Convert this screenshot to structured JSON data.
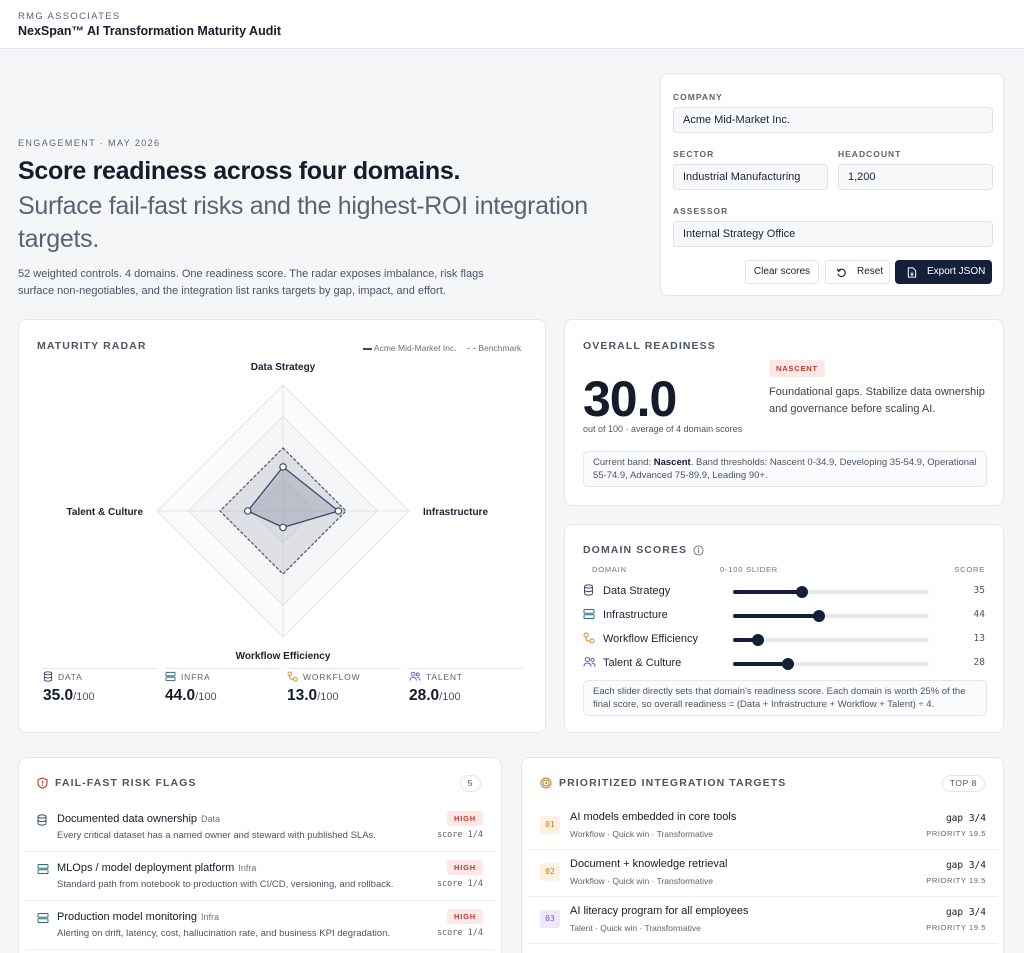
{
  "header": {
    "brand": "RMG ASSOCIATES",
    "title": "NexSpan™ AI Transformation Maturity Audit"
  },
  "hero": {
    "eyebrow": "ENGAGEMENT · MAY 2026",
    "headline": "Score readiness across four domains.",
    "subhead": "Surface fail-fast risks and the highest-ROI integration targets.",
    "lede": "52 weighted controls. 4 domains. One readiness score. The radar exposes imbalance, risk flags surface non-negotiables, and the integration list ranks targets by gap, impact, and effort."
  },
  "form": {
    "company_label": "COMPANY",
    "company_value": "Acme Mid-Market Inc.",
    "sector_label": "SECTOR",
    "sector_value": "Industrial Manufacturing",
    "headcount_label": "HEADCOUNT",
    "headcount_value": "1,200",
    "assessor_label": "ASSESSOR",
    "assessor_value": "Internal Strategy Office",
    "clear_label": "Clear scores",
    "reset_label": "Reset",
    "export_label": "Export JSON"
  },
  "radar": {
    "title": "MATURITY RADAR",
    "legend_company": "Acme Mid-Market Inc.",
    "legend_benchmark": "Benchmark",
    "axes": [
      "Data Strategy",
      "Infrastructure",
      "Workflow Efficiency",
      "Talent & Culture"
    ],
    "company_values": [
      35,
      44,
      13,
      28
    ],
    "benchmark_values": [
      50,
      50,
      50,
      50
    ],
    "max": 100,
    "stats": [
      {
        "label": "DATA",
        "value": "35.0",
        "unit": "/100"
      },
      {
        "label": "INFRA",
        "value": "44.0",
        "unit": "/100"
      },
      {
        "label": "WORKFLOW",
        "value": "13.0",
        "unit": "/100"
      },
      {
        "label": "TALENT",
        "value": "28.0",
        "unit": "/100"
      }
    ]
  },
  "readiness": {
    "title": "OVERALL READINESS",
    "score": "30.0",
    "caption": "out of 100 · average of 4 domain scores",
    "band": "NASCENT",
    "description": "Foundational gaps. Stabilize data ownership and governance before scaling AI.",
    "note_prefix": "Current band: ",
    "note_band": "Nascent",
    "note_rest": ". Band thresholds: Nascent 0-34.9, Developing 35-54.9, Operational 55-74.9, Advanced 75-89.9, Leading 90+."
  },
  "domain_scores": {
    "title": "DOMAIN SCORES",
    "col_domain": "DOMAIN",
    "col_slider": "0-100 SLIDER",
    "col_score": "SCORE",
    "rows": [
      {
        "name": "Data Strategy",
        "score": "35",
        "value": 35,
        "icon": "database-icon",
        "color": "#3b4a6b"
      },
      {
        "name": "Infrastructure",
        "score": "44",
        "value": 44,
        "icon": "server-icon",
        "color": "#2a6f7f"
      },
      {
        "name": "Workflow Efficiency",
        "score": "13",
        "value": 13,
        "icon": "workflow-icon",
        "color": "#d08a2b"
      },
      {
        "name": "Talent & Culture",
        "score": "28",
        "value": 28,
        "icon": "people-icon",
        "color": "#7a4fc0"
      }
    ],
    "note": "Each slider directly sets that domain's readiness score. Each domain is worth 25% of the final score, so overall readiness = (Data + Infrastructure + Workflow + Talent) ÷ 4."
  },
  "risks": {
    "title": "FAIL-FAST RISK FLAGS",
    "count": "5",
    "items": [
      {
        "title": "Documented data ownership",
        "tag": "Data",
        "desc": "Every critical dataset has a named owner and steward with published SLAs.",
        "level": "HIGH",
        "score": "score 1/4",
        "icon": "database-icon"
      },
      {
        "title": "MLOps / model deployment platform",
        "tag": "Infra",
        "desc": "Standard path from notebook to production with CI/CD, versioning, and rollback.",
        "level": "HIGH",
        "score": "score 1/4",
        "icon": "server-icon"
      },
      {
        "title": "Production model monitoring",
        "tag": "Infra",
        "desc": "Alerting on drift, latency, cost, hallucination rate, and business KPI degradation.",
        "level": "HIGH",
        "score": "score 1/4",
        "icon": "server-icon"
      }
    ]
  },
  "targets": {
    "title": "PRIORITIZED INTEGRATION TARGETS",
    "badge": "TOP 8",
    "items": [
      {
        "num": "01",
        "title": "AI models embedded in core tools",
        "meta": "Workflow  ·  Quick win  ·  Transformative",
        "gap": "gap 3/4",
        "priority": "PRIORITY 19.5",
        "bg": "#fdf1e2",
        "fg": "#c27a1c"
      },
      {
        "num": "02",
        "title": "Document + knowledge retrieval",
        "meta": "Workflow  ·  Quick win  ·  Transformative",
        "gap": "gap 3/4",
        "priority": "PRIORITY 19.5",
        "bg": "#fdf1e2",
        "fg": "#c27a1c"
      },
      {
        "num": "03",
        "title": "AI literacy program for all employees",
        "meta": "Talent  ·  Quick win  ·  Transformative",
        "gap": "gap 3/4",
        "priority": "PRIORITY 19.5",
        "bg": "#efe8fb",
        "fg": "#7a4fc0"
      }
    ]
  }
}
